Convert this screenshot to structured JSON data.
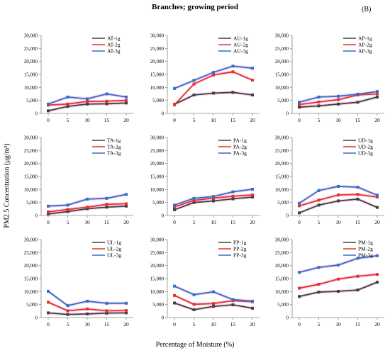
{
  "figure": {
    "title": "Branches; growing period",
    "panel_tag": "(B)",
    "y_axis_title": "PM2.5 Concentration (μg/m³)",
    "x_axis_title": "Percentage of Moisture (%)"
  },
  "colors": {
    "1g": "#404040",
    "2g": "#e8302a",
    "3g": "#2e6fd0",
    "band": "#f6c8e6",
    "axis": "#888888"
  },
  "chart_data": [
    {
      "type": "line",
      "x": [
        0,
        5,
        10,
        15,
        20
      ],
      "ylim": [
        0,
        30000
      ],
      "yticks": [
        0,
        5000,
        10000,
        15000,
        20000,
        25000,
        30000
      ],
      "series": [
        {
          "name": "AT-1g",
          "color": "#404040",
          "values": [
            1000,
            2700,
            3600,
            3700,
            4000
          ]
        },
        {
          "name": "AT-2g",
          "color": "#e8302a",
          "values": [
            3200,
            3600,
            4600,
            4700,
            5000
          ]
        },
        {
          "name": "AT-3g",
          "color": "#2e6fd0",
          "values": [
            3600,
            6300,
            5600,
            7500,
            6300
          ]
        }
      ]
    },
    {
      "type": "line",
      "x": [
        0,
        5,
        10,
        15,
        20
      ],
      "ylim": [
        0,
        30000
      ],
      "yticks": [
        0,
        5000,
        10000,
        15000,
        20000,
        25000,
        30000
      ],
      "series": [
        {
          "name": "AU-1g",
          "color": "#404040",
          "values": [
            3500,
            7100,
            7800,
            8100,
            7100
          ]
        },
        {
          "name": "AU-2g",
          "color": "#e8302a",
          "values": [
            3300,
            11300,
            14800,
            16000,
            12800
          ]
        },
        {
          "name": "AU-3g",
          "color": "#2e6fd0",
          "values": [
            9600,
            12700,
            15800,
            18200,
            17400
          ]
        }
      ]
    },
    {
      "type": "line",
      "x": [
        0,
        5,
        10,
        15,
        20
      ],
      "ylim": [
        0,
        30000
      ],
      "yticks": [
        0,
        5000,
        10000,
        15000,
        20000,
        25000,
        30000
      ],
      "series": [
        {
          "name": "AP-1g",
          "color": "#404040",
          "values": [
            2400,
            2900,
            3600,
            4300,
            6300
          ]
        },
        {
          "name": "AP-2g",
          "color": "#e8302a",
          "values": [
            3400,
            4400,
            5300,
            7100,
            7500
          ]
        },
        {
          "name": "AP-3g",
          "color": "#2e6fd0",
          "values": [
            4300,
            6300,
            6600,
            7400,
            8400
          ]
        }
      ]
    },
    {
      "type": "line",
      "x": [
        0,
        5,
        10,
        15,
        20
      ],
      "ylim": [
        0,
        30000
      ],
      "yticks": [
        0,
        5000,
        10000,
        15000,
        20000,
        25000,
        30000
      ],
      "series": [
        {
          "name": "TA-1g",
          "color": "#404040",
          "values": [
            600,
            1500,
            2600,
            3200,
            3600
          ]
        },
        {
          "name": "TA-2g",
          "color": "#e8302a",
          "values": [
            1400,
            2300,
            3200,
            4300,
            4500
          ]
        },
        {
          "name": "TA-3g",
          "color": "#2e6fd0",
          "values": [
            3600,
            4000,
            6300,
            6600,
            8100
          ]
        }
      ]
    },
    {
      "type": "line",
      "x": [
        0,
        5,
        10,
        15,
        20
      ],
      "ylim": [
        0,
        30000
      ],
      "yticks": [
        0,
        5000,
        10000,
        15000,
        20000,
        25000,
        30000
      ],
      "series": [
        {
          "name": "PA-1g",
          "color": "#404040",
          "values": [
            2200,
            5000,
            5600,
            6400,
            7100
          ]
        },
        {
          "name": "PA-2g",
          "color": "#e8302a",
          "values": [
            3300,
            5800,
            6700,
            7400,
            7900
          ]
        },
        {
          "name": "PA-3g",
          "color": "#2e6fd0",
          "values": [
            4000,
            6600,
            7300,
            9100,
            10100
          ]
        }
      ]
    },
    {
      "type": "line",
      "x": [
        0,
        5,
        10,
        15,
        20
      ],
      "ylim": [
        0,
        30000
      ],
      "yticks": [
        0,
        5000,
        10000,
        15000,
        20000,
        25000,
        30000
      ],
      "series": [
        {
          "name": "UD-1g",
          "color": "#404040",
          "values": [
            1000,
            4000,
            5600,
            6300,
            3100
          ]
        },
        {
          "name": "UD-2g",
          "color": "#e8302a",
          "values": [
            3700,
            5900,
            7900,
            8100,
            7100
          ]
        },
        {
          "name": "UD-3g",
          "color": "#2e6fd0",
          "values": [
            4700,
            9600,
            11200,
            10900,
            7800
          ]
        }
      ]
    },
    {
      "type": "line",
      "x": [
        0,
        5,
        10,
        15,
        20
      ],
      "ylim": [
        0,
        30000
      ],
      "yticks": [
        0,
        5000,
        10000,
        15000,
        20000,
        25000,
        30000
      ],
      "series": [
        {
          "name": "UL-1g",
          "color": "#404040",
          "values": [
            1800,
            1200,
            1400,
            1700,
            1800
          ]
        },
        {
          "name": "UL-2g",
          "color": "#e8302a",
          "values": [
            5900,
            2600,
            3300,
            2600,
            2700
          ]
        },
        {
          "name": "UL-3g",
          "color": "#2e6fd0",
          "values": [
            10100,
            4600,
            6300,
            5500,
            5500
          ]
        }
      ]
    },
    {
      "type": "line",
      "x": [
        0,
        5,
        10,
        15,
        20
      ],
      "ylim": [
        0,
        30000
      ],
      "yticks": [
        0,
        5000,
        10000,
        15000,
        20000,
        25000,
        30000
      ],
      "series": [
        {
          "name": "PP-1g",
          "color": "#404040",
          "values": [
            5600,
            3000,
            4300,
            4900,
            3600
          ]
        },
        {
          "name": "PP-2g",
          "color": "#e8302a",
          "values": [
            8500,
            5100,
            5400,
            6500,
            6100
          ]
        },
        {
          "name": "PP-3g",
          "color": "#2e6fd0",
          "values": [
            12100,
            8800,
            9900,
            6900,
            6300
          ]
        }
      ]
    },
    {
      "type": "line",
      "x": [
        0,
        5,
        10,
        15,
        20
      ],
      "ylim": [
        0,
        30000
      ],
      "yticks": [
        0,
        5000,
        10000,
        15000,
        20000,
        25000,
        30000
      ],
      "series": [
        {
          "name": "PM-1g",
          "color": "#404040",
          "values": [
            8100,
            9800,
            10100,
            10600,
            13600
          ]
        },
        {
          "name": "PM-2g",
          "color": "#e8302a",
          "values": [
            11300,
            12800,
            14800,
            15900,
            16600
          ]
        },
        {
          "name": "PM-3g",
          "color": "#2e6fd0",
          "values": [
            17400,
            19300,
            20200,
            22800,
            23800
          ]
        }
      ]
    }
  ]
}
